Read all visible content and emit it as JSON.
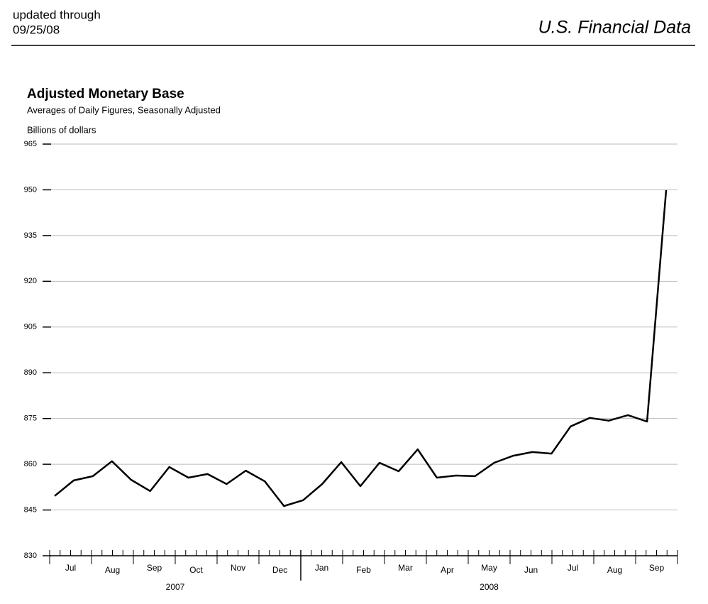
{
  "header": {
    "updated": "updated through",
    "date": "09/25/08",
    "brand": "U.S. Financial Data"
  },
  "chart_data": {
    "type": "line",
    "title": "Adjusted Monetary Base",
    "subtitle": "Averages of Daily Figures, Seasonally Adjusted",
    "y_label": "Billions of dollars",
    "months": [
      "Jul",
      "Aug",
      "Sep",
      "Oct",
      "Nov",
      "Dec",
      "Jan",
      "Feb",
      "Mar",
      "Apr",
      "May",
      "Jun",
      "Jul",
      "Aug",
      "Sep"
    ],
    "years": [
      "2007",
      "2008"
    ],
    "values": [
      849.6,
      854.7,
      856.1,
      861.0,
      854.9,
      851.2,
      859.1,
      855.6,
      856.8,
      853.5,
      857.9,
      854.4,
      846.3,
      848.2,
      853.5,
      860.7,
      852.8,
      860.5,
      857.7,
      864.9,
      855.6,
      856.3,
      856.1,
      860.5,
      862.8,
      864.0,
      863.5,
      872.4,
      875.2,
      874.3,
      876.1,
      874.0,
      949.9
    ],
    "color": "#000000",
    "ylim": [
      830,
      965
    ],
    "yticks": [
      830,
      845,
      860,
      875,
      890,
      905,
      920,
      935,
      950,
      965
    ],
    "grid": true
  }
}
